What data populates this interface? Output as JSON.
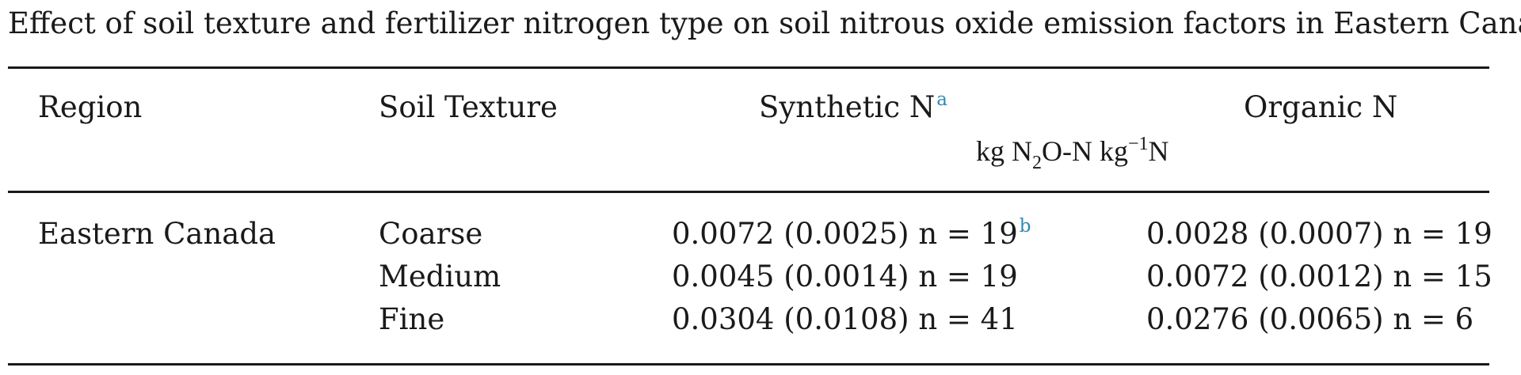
{
  "caption": "Effect of soil texture and fertilizer nitrogen type on soil nitrous oxide emission factors in Eastern Canada",
  "header": {
    "region": "Region",
    "soil_texture": "Soil Texture",
    "synthetic_n": "Synthetic N",
    "synthetic_n_footnote": "a",
    "organic_n": "Organic N",
    "unit": {
      "part1": "kg N",
      "sub": "2",
      "part2": "O-N kg",
      "sup": "−1",
      "part3": "N"
    }
  },
  "rows": [
    {
      "region": "Eastern Canada",
      "texture": "Coarse",
      "synthetic": "0.0072 (0.0025) n = 19",
      "synthetic_footnote": "b",
      "organic": "0.0028 (0.0007) n = 19"
    },
    {
      "region": "",
      "texture": "Medium",
      "synthetic": "0.0045 (0.0014) n = 19",
      "organic": "0.0072 (0.0012) n = 15"
    },
    {
      "region": "",
      "texture": "Fine",
      "synthetic": "0.0304 (0.0108) n = 41",
      "organic": "0.0276 (0.0065) n = 6"
    }
  ]
}
